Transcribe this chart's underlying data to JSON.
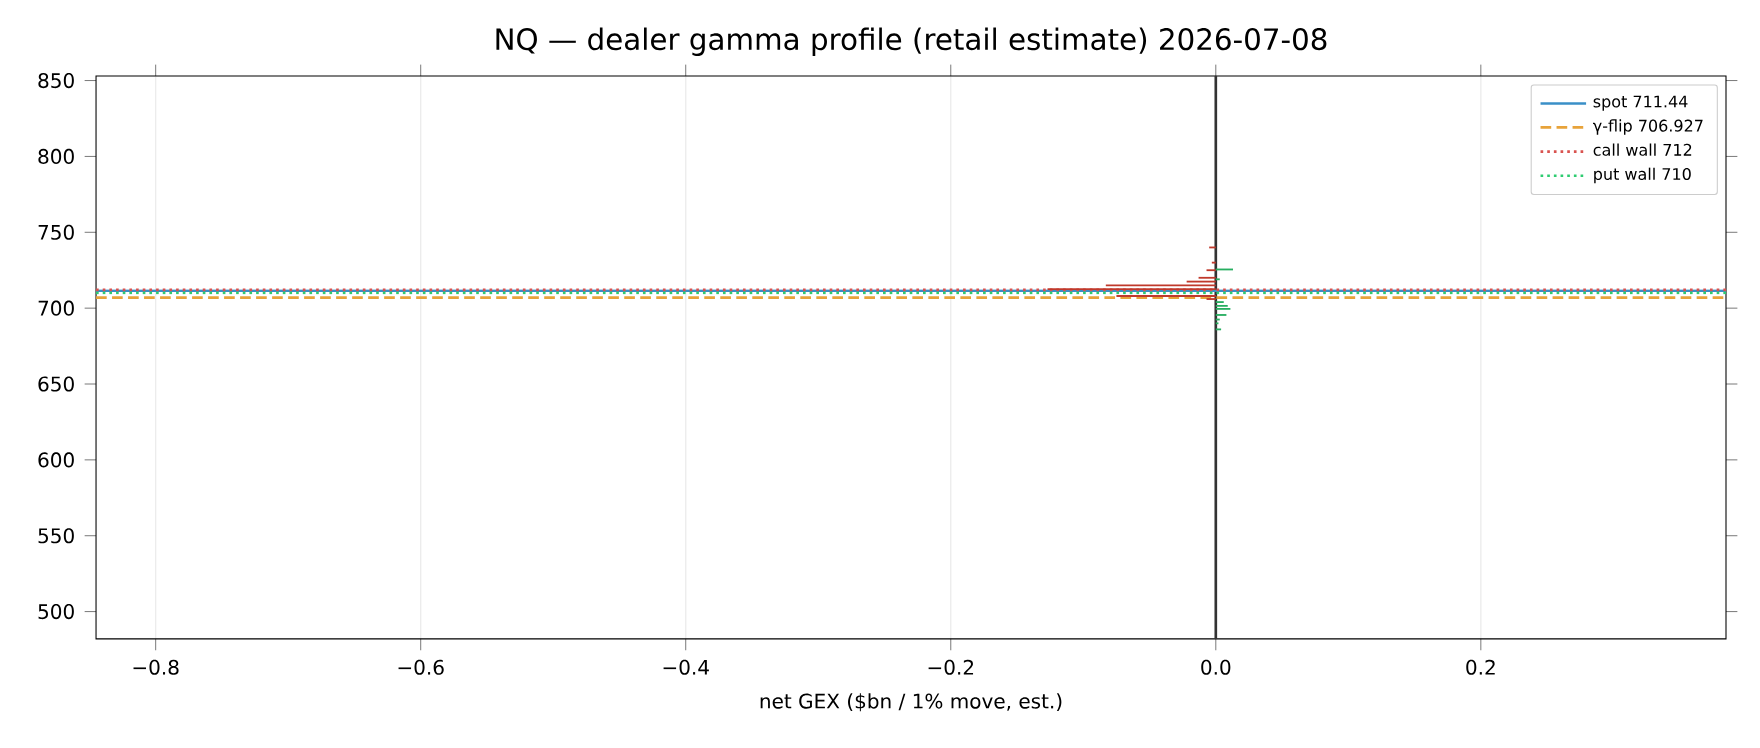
{
  "chart_data": {
    "type": "bar",
    "orientation": "horizontal",
    "title": "NQ — dealer gamma profile (retail estimate)  2026-07-08",
    "xlabel": "net GEX ($bn / 1% move, est.)",
    "series": [
      {
        "color": "#c0392b",
        "x": [
          740,
          730,
          725,
          720,
          717.5,
          715,
          712.5,
          708,
          706
        ],
        "values": [
          -0.005,
          -0.003,
          -0.007,
          -0.013,
          -0.022,
          -0.083,
          -0.127,
          -0.075,
          -0.007
        ]
      },
      {
        "color": "#27ae60",
        "x": [
          725.5,
          719,
          704,
          701.5,
          699.5,
          695.5,
          692.5,
          690,
          686
        ],
        "values": [
          0.013,
          0.003,
          0.006,
          0.009,
          0.011,
          0.008,
          0.003,
          0.002,
          0.004
        ]
      }
    ],
    "xlim": [
      -0.845,
      0.385
    ],
    "ylim": [
      482,
      853
    ],
    "xticks": [
      {
        "value": -0.8,
        "label": "−0.8"
      },
      {
        "value": -0.6,
        "label": "−0.6"
      },
      {
        "value": -0.4,
        "label": "−0.4"
      },
      {
        "value": -0.2,
        "label": "−0.2"
      },
      {
        "value": 0,
        "label": "0.0"
      },
      {
        "value": 0.2,
        "label": "0.2"
      }
    ],
    "yticks": [
      500,
      550,
      600,
      650,
      700,
      750,
      800,
      850
    ],
    "ref_lines": [
      {
        "axis": "x",
        "value": 0,
        "color": "#333333",
        "line_style": "solid"
      },
      {
        "axis": "y",
        "value": 711.44,
        "label": "spot 711.44",
        "color": "#3a8fc7",
        "line_style": "solid"
      },
      {
        "axis": "y",
        "value": 706.927,
        "label": "γ-flip 706.927",
        "color": "#e8a33a",
        "line_style": "dashed"
      },
      {
        "axis": "y",
        "value": 712,
        "label": "call wall 712",
        "color": "#d9534f",
        "line_style": "dotted"
      },
      {
        "axis": "y",
        "value": 710,
        "label": "put wall 710",
        "color": "#2ecc71",
        "line_style": "dotted"
      }
    ],
    "grid": "x",
    "legend": "top right"
  }
}
